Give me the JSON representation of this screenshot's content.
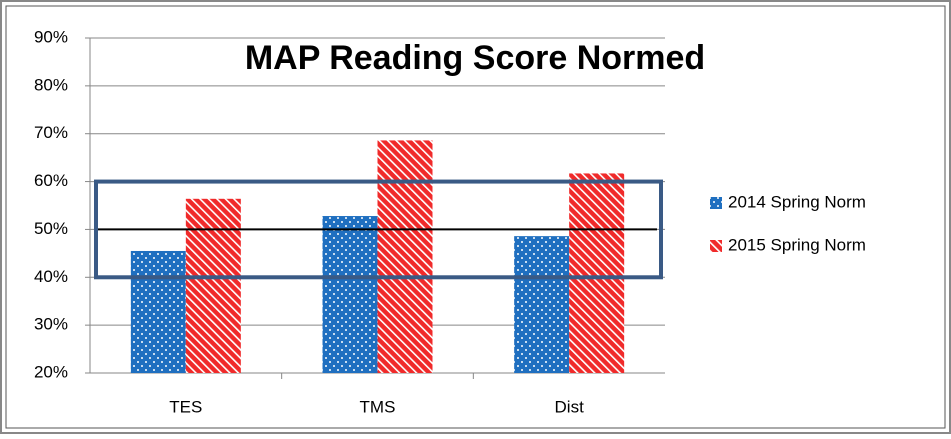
{
  "chart_data": {
    "type": "bar",
    "title": "MAP Reading Score Normed",
    "categories": [
      "TES",
      "TMS",
      "Dist"
    ],
    "series": [
      {
        "name": "2014 Spring Norm",
        "color": "#1f6fc0",
        "values": [
          45.5,
          52.8,
          48.6
        ]
      },
      {
        "name": "2015 Spring Norm",
        "color": "#f02a2a",
        "values": [
          56.4,
          68.6,
          61.7
        ]
      }
    ],
    "ylim": [
      20,
      90
    ],
    "yticks": [
      {
        "value": 20,
        "label": "20%"
      },
      {
        "value": 30,
        "label": "30%"
      },
      {
        "value": 40,
        "label": "40%"
      },
      {
        "value": 50,
        "label": "50%"
      },
      {
        "value": 60,
        "label": "60%"
      },
      {
        "value": 70,
        "label": "70%"
      },
      {
        "value": 80,
        "label": "80%"
      },
      {
        "value": 90,
        "label": "90%"
      }
    ],
    "grid": true,
    "legend": "right",
    "reference_line": 50,
    "highlight_band": [
      40,
      60
    ]
  }
}
